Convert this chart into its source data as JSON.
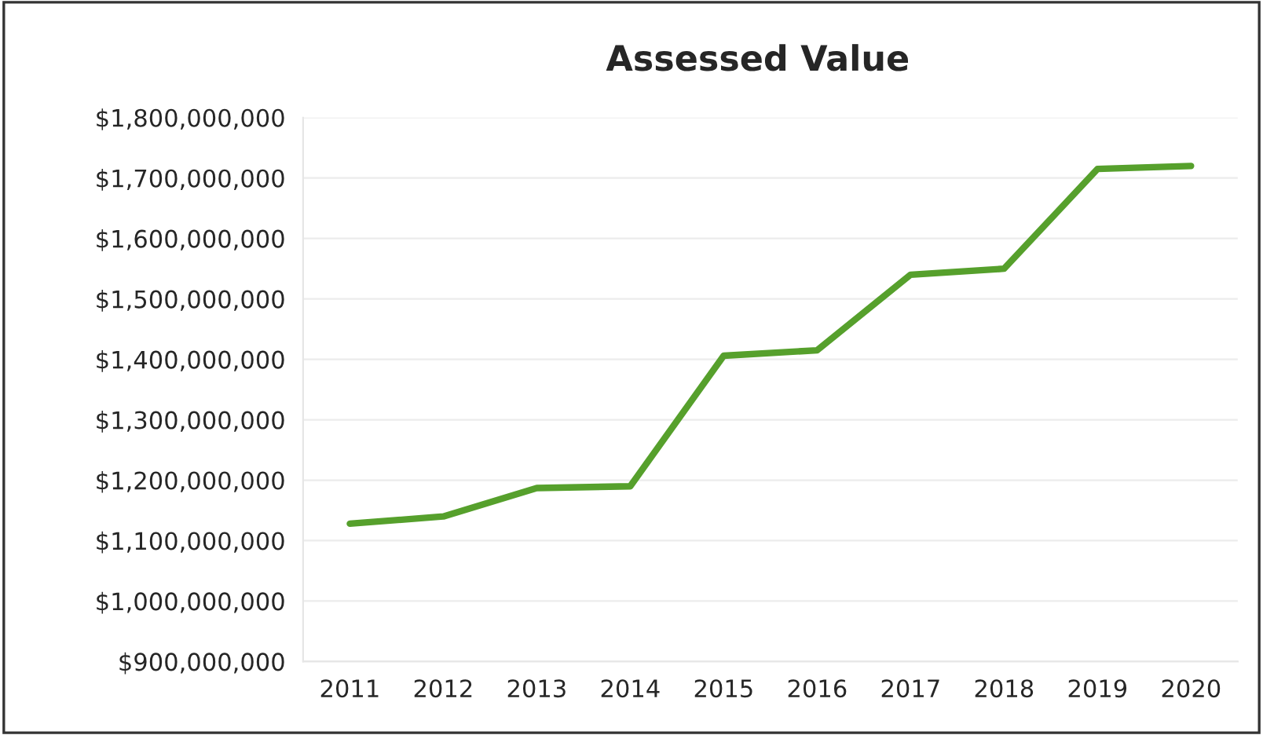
{
  "chart_data": {
    "type": "line",
    "title": "Assessed Value",
    "categories": [
      "2011",
      "2012",
      "2013",
      "2014",
      "2015",
      "2016",
      "2017",
      "2018",
      "2019",
      "2020"
    ],
    "series": [
      {
        "color": "#56a02c",
        "values": [
          1128000000,
          1140000000,
          1187000000,
          1190000000,
          1406000000,
          1415000000,
          1540000000,
          1550000000,
          1715000000,
          1720000000
        ]
      }
    ],
    "ylim": [
      900000000,
      1800000000
    ],
    "yticks": [
      {
        "value": 900000000,
        "label": "$900,000,000"
      },
      {
        "value": 1000000000,
        "label": "$1,000,000,000"
      },
      {
        "value": 1100000000,
        "label": "$1,100,000,000"
      },
      {
        "value": 1200000000,
        "label": "$1,200,000,000"
      },
      {
        "value": 1300000000,
        "label": "$1,300,000,000"
      },
      {
        "value": 1400000000,
        "label": "$1,400,000,000"
      },
      {
        "value": 1500000000,
        "label": "$1,500,000,000"
      },
      {
        "value": 1600000000,
        "label": "$1,600,000,000"
      },
      {
        "value": 1700000000,
        "label": "$1,700,000,000"
      },
      {
        "value": 1800000000,
        "label": "$1,800,000,000"
      }
    ],
    "grid": "y",
    "marker": "none",
    "line_style": "solid"
  }
}
